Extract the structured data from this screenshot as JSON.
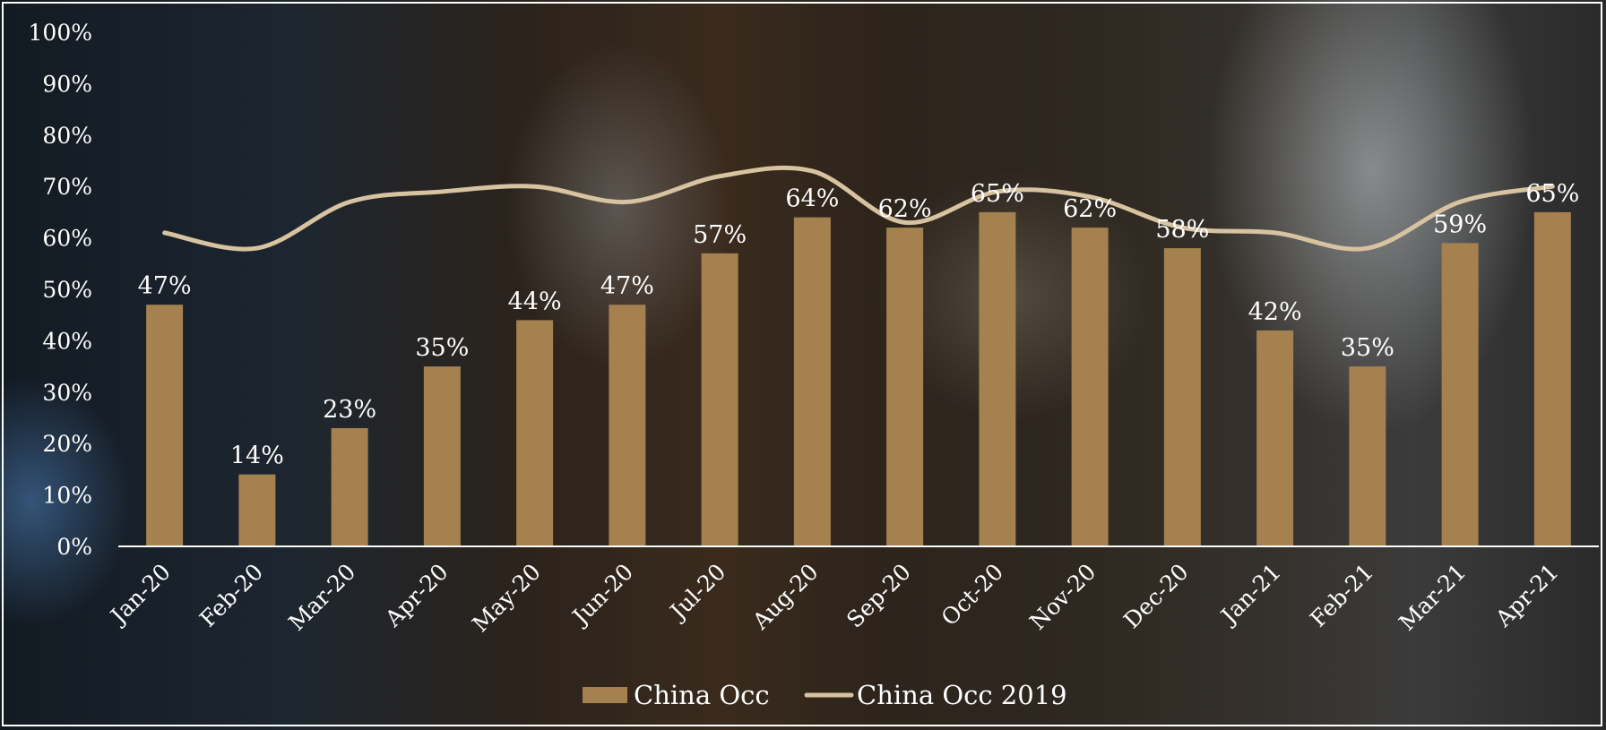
{
  "chart_data": {
    "type": "bar",
    "categories": [
      "Jan-20",
      "Feb-20",
      "Mar-20",
      "Apr-20",
      "May-20",
      "Jun-20",
      "Jul-20",
      "Aug-20",
      "Sep-20",
      "Oct-20",
      "Nov-20",
      "Dec-20",
      "Jan-21",
      "Feb-21",
      "Mar-21",
      "Apr-21"
    ],
    "series": [
      {
        "name": "China Occ",
        "kind": "bar",
        "color": "#a4814f",
        "values": [
          47,
          14,
          23,
          35,
          44,
          47,
          57,
          64,
          62,
          65,
          62,
          58,
          42,
          35,
          59,
          65
        ],
        "data_labels": [
          "47%",
          "14%",
          "23%",
          "35%",
          "44%",
          "47%",
          "57%",
          "64%",
          "62%",
          "65%",
          "62%",
          "58%",
          "42%",
          "35%",
          "59%",
          "65%"
        ]
      },
      {
        "name": "China Occ 2019",
        "kind": "line",
        "color": "#d7c3a0",
        "values": [
          61,
          58,
          67,
          69,
          70,
          67,
          72,
          73,
          63,
          69,
          68,
          62,
          61,
          58,
          67,
          70
        ]
      }
    ],
    "ylim": [
      0,
      100
    ],
    "yticks": [
      "0%",
      "10%",
      "20%",
      "30%",
      "40%",
      "50%",
      "60%",
      "70%",
      "80%",
      "90%",
      "100%"
    ],
    "grid": false,
    "legend": "bottom-center",
    "text_color": "#ffffff"
  }
}
